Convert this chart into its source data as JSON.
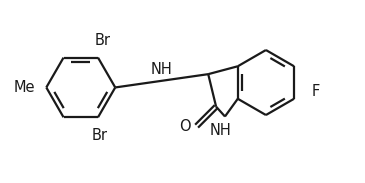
{
  "background_color": "#ffffff",
  "line_color": "#1a1a1a",
  "line_width": 1.6,
  "font_size": 10.5,
  "figsize": [
    3.67,
    1.82
  ],
  "dpi": 100,
  "labels": {
    "Br_top": "Br",
    "Br_bottom": "Br",
    "Me": "Me",
    "NH_bridge": "NH",
    "O": "O",
    "NH_ring": "NH",
    "F": "F"
  }
}
